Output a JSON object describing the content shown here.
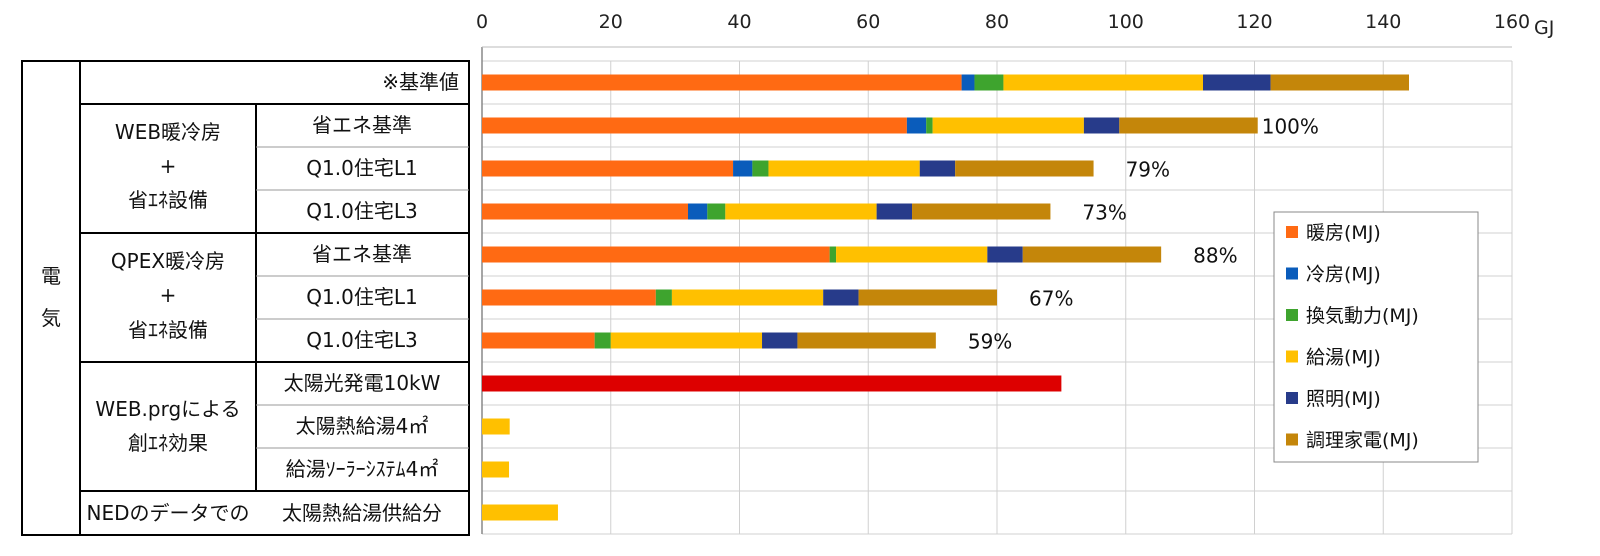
{
  "table": {
    "group_label": "電\n気",
    "reference_label": "※基準値",
    "sections": [
      {
        "lines": [
          "WEB暖冷房",
          "+",
          "省ｴﾈ設備"
        ],
        "rows": [
          "省エネ基準",
          "Q1.0住宅L1",
          "Q1.0住宅L3"
        ]
      },
      {
        "lines": [
          "QPEX暖冷房",
          "+",
          "省ｴﾈ設備"
        ],
        "rows": [
          "省エネ基準",
          "Q1.0住宅L1",
          "Q1.0住宅L3"
        ]
      },
      {
        "lines": [
          "WEB.prgによる",
          "創ｴﾈ効果"
        ],
        "rows": [
          "太陽光発電10kW",
          "太陽熱給湯4㎡",
          "給湯ｿｰﾗｰｼｽﾃﾑ4㎡"
        ]
      }
    ],
    "ned_label": "NEDのデータでの",
    "ned_row": "太陽熱給湯供給分"
  },
  "chart_data": {
    "type": "bar",
    "orientation": "horizontal",
    "stacked": true,
    "x_unit": "GJ",
    "xlim": [
      0,
      160
    ],
    "x_ticks": [
      0,
      20,
      40,
      60,
      80,
      100,
      120,
      140,
      160
    ],
    "grid": true,
    "legend_position": "right",
    "rows": [
      {
        "label": "※基準値",
        "values": [
          74.5,
          2.0,
          4.5,
          31.0,
          10.5,
          21.5
        ],
        "pct": ""
      },
      {
        "label": "省エネ基準",
        "values": [
          66.0,
          3.0,
          1.0,
          23.5,
          5.5,
          21.5
        ],
        "pct": "100%"
      },
      {
        "label": "Q1.0住宅L1",
        "values": [
          39.0,
          3.0,
          2.5,
          23.5,
          5.5,
          21.5
        ],
        "pct": "79%"
      },
      {
        "label": "Q1.0住宅L3",
        "values": [
          32.0,
          3.0,
          2.8,
          23.5,
          5.5,
          21.5
        ],
        "pct": "73%"
      },
      {
        "label": "省エネ基準",
        "values": [
          54.0,
          0,
          1.0,
          23.5,
          5.5,
          21.5
        ],
        "pct": "88%"
      },
      {
        "label": "Q1.0住宅L1",
        "values": [
          27.0,
          0,
          2.5,
          23.5,
          5.5,
          21.5
        ],
        "pct": "67%"
      },
      {
        "label": "Q1.0住宅L3",
        "values": [
          17.5,
          0,
          2.5,
          23.5,
          5.5,
          21.5
        ],
        "pct": "59%"
      },
      {
        "label": "太陽光発電10kW",
        "single": 90.0,
        "single_color": "#dd0000",
        "pct": ""
      },
      {
        "label": "太陽熱給湯4㎡",
        "single": 4.3,
        "single_color": "#ffc000",
        "pct": ""
      },
      {
        "label": "給湯ｿｰﾗｰｼｽﾃﾑ4㎡",
        "single": 4.2,
        "single_color": "#ffc000",
        "pct": ""
      },
      {
        "label": "太陽熱給湯供給分",
        "single": 11.8,
        "single_color": "#ffc000",
        "pct": ""
      }
    ],
    "series": [
      {
        "name": "暖房(MJ)",
        "color": "#ff6a13"
      },
      {
        "name": "冷房(MJ)",
        "color": "#0a5cbb"
      },
      {
        "name": "換気動力(MJ)",
        "color": "#3ea42e"
      },
      {
        "name": "給湯(MJ)",
        "color": "#ffc000"
      },
      {
        "name": "照明(MJ)",
        "color": "#273b8a"
      },
      {
        "name": "調理家電(MJ)",
        "color": "#c4860a"
      }
    ]
  }
}
